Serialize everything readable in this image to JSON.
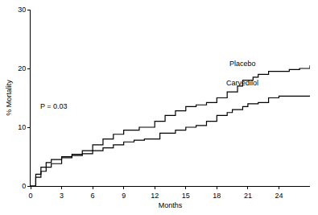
{
  "chart_data": {
    "type": "line",
    "x_label": "Months",
    "y_label": "% Mortality",
    "annotations": [
      "P = 0.03"
    ],
    "xlim": [
      0,
      27
    ],
    "xticks": [
      0,
      3,
      6,
      9,
      12,
      15,
      18,
      21,
      24
    ],
    "ylim": [
      0,
      30
    ],
    "yticks": [
      0,
      10,
      20,
      30
    ],
    "grid": false,
    "series": [
      {
        "name": "Placebo",
        "color": "#000000",
        "line_style": "step",
        "x": [
          0,
          0.5,
          1,
          1.5,
          2,
          3,
          4,
          5,
          6,
          7,
          8,
          9,
          10.5,
          12,
          13,
          14,
          15,
          16,
          17,
          18,
          19,
          20,
          20.5,
          21.5,
          22,
          23,
          24,
          25,
          26,
          27
        ],
        "values": [
          0,
          1.5,
          2.5,
          3.2,
          3.8,
          4.8,
          5.4,
          6.0,
          7.0,
          8.0,
          8.8,
          9.5,
          10.0,
          11.0,
          12.0,
          12.8,
          13.5,
          13.8,
          14.2,
          15.0,
          16.0,
          17.0,
          18.0,
          18.5,
          19.0,
          19.5,
          19.5,
          19.8,
          20.0,
          20.5
        ]
      },
      {
        "name": "Carvedilol",
        "color": "#000000",
        "line_style": "step",
        "x": [
          0,
          0.5,
          1,
          1.5,
          2,
          3,
          4,
          5,
          6,
          7,
          8,
          9,
          10,
          11,
          12.5,
          14,
          15,
          16,
          17,
          18,
          19,
          19.5,
          20.5,
          21,
          22,
          23,
          24,
          27
        ],
        "values": [
          0,
          2.0,
          3.2,
          4.0,
          4.5,
          5.0,
          5.2,
          5.5,
          6.0,
          6.5,
          7.0,
          7.5,
          7.8,
          8.0,
          9.0,
          9.5,
          10.0,
          10.3,
          11.0,
          12.0,
          12.5,
          13.0,
          13.5,
          14.0,
          14.2,
          15.0,
          15.3,
          15.3
        ]
      }
    ]
  }
}
